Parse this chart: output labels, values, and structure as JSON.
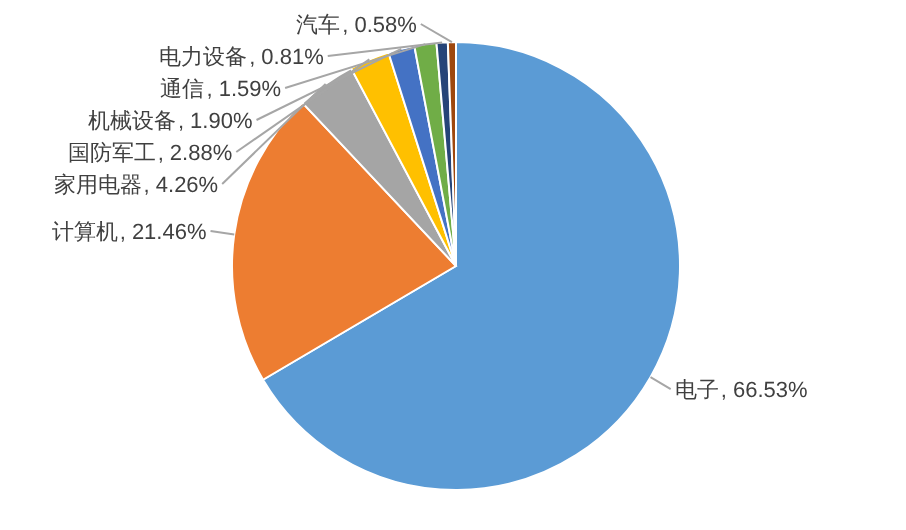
{
  "chart_data": {
    "type": "pie",
    "categories": [
      "电子",
      "计算机",
      "家用电器",
      "国防军工",
      "机械设备",
      "通信",
      "电力设备",
      "汽车"
    ],
    "values": [
      66.53,
      21.46,
      4.26,
      2.88,
      1.9,
      1.59,
      0.81,
      0.58
    ],
    "colors": [
      "#5b9bd5",
      "#ed7d31",
      "#a5a5a5",
      "#ffc000",
      "#4472c4",
      "#70ad47",
      "#264478",
      "#9e480e"
    ],
    "value_labels": [
      ", 66.53%",
      ", 21.46%",
      ", 4.26%",
      ", 2.88%",
      ", 1.90%",
      ", 1.59%",
      ", 0.81%",
      ", 0.58%"
    ]
  }
}
